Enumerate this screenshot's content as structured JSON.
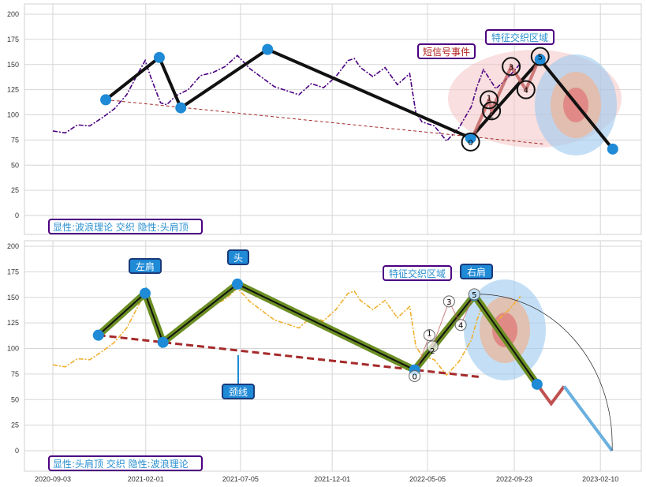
{
  "chart_data": [
    {
      "type": "line",
      "panel": "top",
      "title": "",
      "yticks": [
        0,
        25,
        50,
        75,
        100,
        125,
        150,
        175,
        200
      ],
      "ylim": [
        -18,
        205
      ],
      "price_color": "#4b0082",
      "price": {
        "x": [
          0,
          20,
          40,
          60,
          80,
          100,
          120,
          140,
          150,
          160,
          175,
          185,
          200,
          220,
          240,
          260,
          280,
          300,
          320,
          340,
          360,
          380,
          400,
          420,
          440,
          460,
          480,
          490,
          500,
          520,
          540,
          560,
          580,
          590,
          600,
          620,
          640,
          660,
          680,
          690,
          700,
          720,
          740,
          760
        ],
        "y": [
          88,
          85,
          92,
          90,
          97,
          105,
          118,
          140,
          150,
          140,
          115,
          112,
          120,
          125,
          138,
          140,
          145,
          155,
          150,
          140,
          130,
          125,
          120,
          130,
          125,
          135,
          150,
          160,
          150,
          140,
          148,
          130,
          140,
          100,
          90,
          85,
          78,
          90,
          110,
          130,
          145,
          125,
          135,
          148
        ]
      },
      "zigzag": {
        "x": [
          86,
          173,
          208,
          349,
          679,
          792,
          910
        ],
        "y": [
          115,
          157,
          107,
          165,
          77,
          155,
          66
        ]
      },
      "neckline": {
        "x": [
          86,
          798
        ],
        "y": [
          115,
          71
        ]
      },
      "waves": {
        "labels": [
          "0",
          "1",
          "2",
          "3",
          "4",
          "5"
        ],
        "x": [
          679,
          709,
          713,
          745,
          769,
          792
        ],
        "y": [
          73,
          115,
          104,
          148,
          125,
          158
        ]
      },
      "annotations": [
        "短信号事件",
        "特征交织区域"
      ],
      "caption": "显性:波浪理论 交织 隐性:头肩顶"
    },
    {
      "type": "line",
      "panel": "bottom",
      "yticks": [
        0,
        25,
        50,
        75,
        100,
        125,
        150,
        175,
        200
      ],
      "ylim": [
        -18,
        205
      ],
      "xticks": [
        {
          "label": "2020-09-03",
          "day": 0
        },
        {
          "label": "2021-02-01",
          "day": 151
        },
        {
          "label": "2021-07-05",
          "day": 305
        },
        {
          "label": "2021-12-01",
          "day": 454
        },
        {
          "label": "2022-05-05",
          "day": 609
        },
        {
          "label": "2022-09-23",
          "day": 750
        },
        {
          "label": "2023-02-10",
          "day": 890
        }
      ],
      "price_color": "#f0b030",
      "zigzag": {
        "x": [
          74,
          150,
          179,
          300,
          588,
          685,
          787
        ],
        "y": [
          113,
          154,
          106,
          163,
          79,
          152,
          65
        ]
      },
      "projection_red": {
        "x": [
          787,
          810,
          831
        ],
        "y": [
          65,
          46,
          63
        ]
      },
      "projection_blue": {
        "x": [
          831,
          909
        ],
        "y": [
          63,
          0
        ]
      },
      "neckline": {
        "x": [
          74,
          696
        ],
        "y": [
          113,
          72
        ]
      },
      "waves": {
        "labels": [
          "0",
          "1",
          "2",
          "3",
          "4",
          "5"
        ],
        "x": [
          588,
          612,
          617,
          644,
          663,
          685
        ],
        "y": [
          73,
          113,
          102,
          146,
          123,
          153
        ]
      },
      "pattern_labels": {
        "left_shoulder": "左肩",
        "head": "头",
        "right_shoulder": "右肩",
        "neckline": "颈线"
      },
      "annotations": [
        "特征交织区域"
      ],
      "caption": "显性:头肩顶 交织 隐性:波浪理论"
    }
  ]
}
